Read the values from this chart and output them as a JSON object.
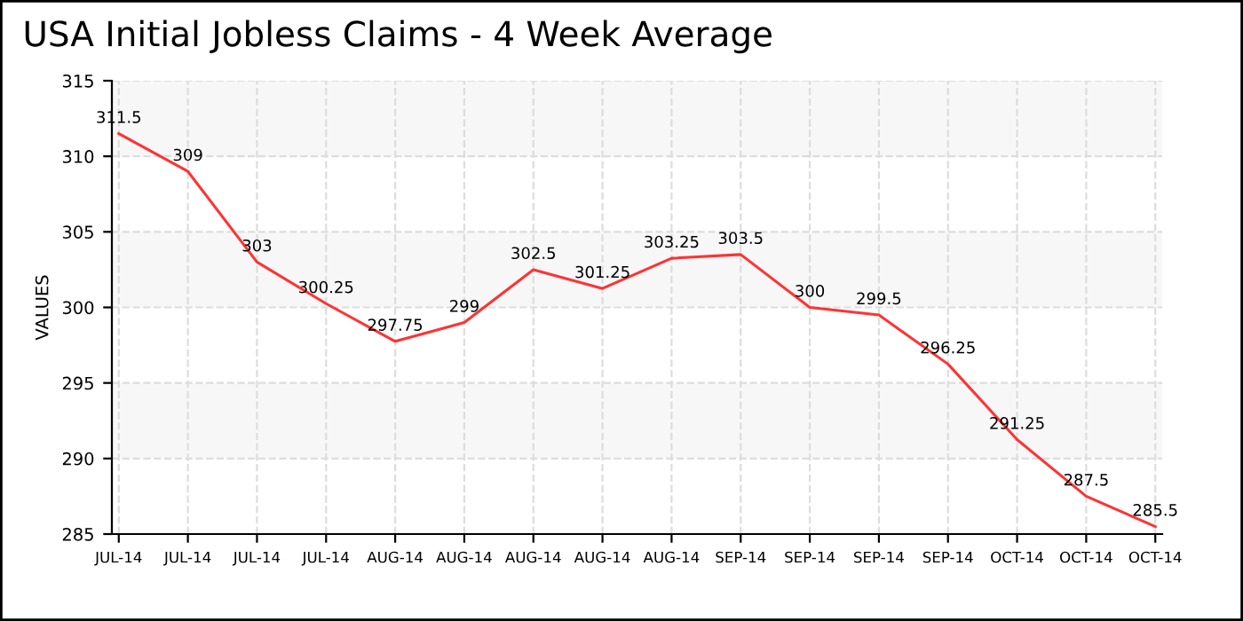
{
  "chart_data": {
    "type": "line",
    "title": "USA Initial Jobless Claims - 4 Week Average",
    "ylabel": "VALUES",
    "categories": [
      "JUL-14",
      "JUL-14",
      "JUL-14",
      "JUL-14",
      "AUG-14",
      "AUG-14",
      "AUG-14",
      "AUG-14",
      "AUG-14",
      "SEP-14",
      "SEP-14",
      "SEP-14",
      "SEP-14",
      "OCT-14",
      "OCT-14",
      "OCT-14"
    ],
    "series": [
      {
        "color": "#ff3333",
        "values": [
          311.5,
          309,
          303,
          300.25,
          297.75,
          299,
          302.5,
          301.25,
          303.25,
          303.5,
          300,
          299.5,
          296.25,
          291.25,
          287.5,
          285.5
        ]
      }
    ],
    "ylim": [
      285,
      315
    ],
    "yticks": [
      285,
      290,
      295,
      300,
      305,
      310,
      315
    ],
    "bands": [
      {
        "axis": "y",
        "from": 290,
        "to": 295,
        "color": "#f7f7f7"
      },
      {
        "axis": "y",
        "from": 300,
        "to": 305,
        "color": "#f7f7f7"
      },
      {
        "axis": "y",
        "from": 310,
        "to": 315,
        "color": "#f7f7f7"
      }
    ],
    "grid": true,
    "data_labels": true,
    "marker": "none",
    "line_style": "solid"
  }
}
